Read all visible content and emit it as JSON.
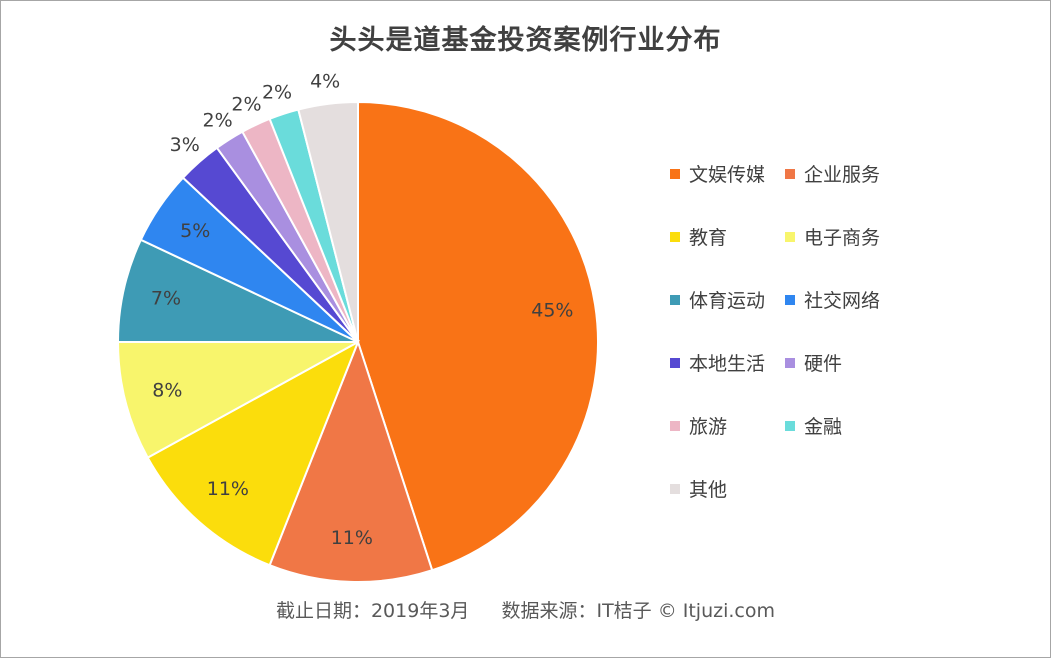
{
  "chart_data": {
    "type": "pie",
    "title": "头头是道基金投资案例行业分布",
    "categories": [
      "文娱传媒",
      "企业服务",
      "教育",
      "电子商务",
      "体育运动",
      "社交网络",
      "本地生活",
      "硬件",
      "旅游",
      "金融",
      "其他"
    ],
    "values": [
      45,
      11,
      11,
      8,
      7,
      5,
      3,
      2,
      2,
      2,
      4
    ],
    "labels": [
      "45%",
      "11%",
      "11%",
      "8%",
      "7%",
      "5%",
      "3%",
      "2%",
      "2%",
      "2%",
      "4%"
    ],
    "colors": [
      "#F97316",
      "#F07746",
      "#FBDD0C",
      "#F8F56C",
      "#3E9BB5",
      "#2F86F0",
      "#5649D2",
      "#A98FE0",
      "#EDB6C5",
      "#6ADCDB",
      "#E4DEDE"
    ],
    "start_angle_deg": 0,
    "direction": "clockwise",
    "legend_position": "right"
  },
  "footer": {
    "cutoff": "截止日期：2019年3月",
    "source": "数据来源：IT桔子 © Itjuzi.com"
  }
}
